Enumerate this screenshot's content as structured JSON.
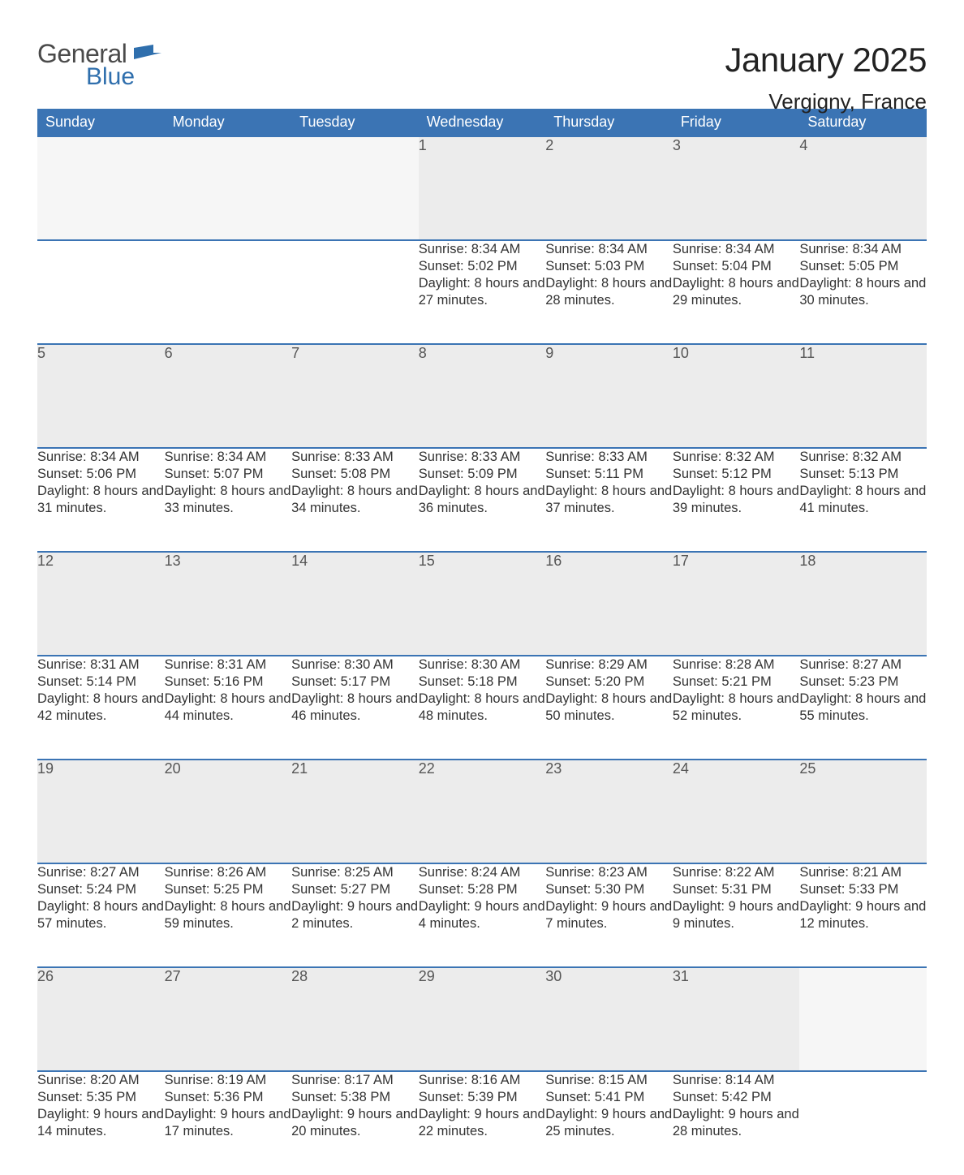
{
  "logo": {
    "word1": "General",
    "word2": "Blue"
  },
  "title": "January 2025",
  "location": "Vergigny, France",
  "colors": {
    "header_bg": "#3b74b4",
    "header_text": "#ffffff",
    "daynum_bg": "#ececec",
    "daynum_text": "#555555",
    "row_border": "#3b74b4",
    "body_text": "#333333",
    "logo_gray": "#4a4a4a",
    "logo_blue": "#2f6fad",
    "page_bg": "#ffffff"
  },
  "layout": {
    "columns": 7,
    "title_fontsize": 42,
    "location_fontsize": 26,
    "header_fontsize": 18,
    "daynum_fontsize": 18,
    "detail_fontsize": 16.5
  },
  "day_headers": [
    "Sunday",
    "Monday",
    "Tuesday",
    "Wednesday",
    "Thursday",
    "Friday",
    "Saturday"
  ],
  "weeks": [
    [
      null,
      null,
      null,
      {
        "n": "1",
        "sunrise": "8:34 AM",
        "sunset": "5:02 PM",
        "daylight": "8 hours and 27 minutes."
      },
      {
        "n": "2",
        "sunrise": "8:34 AM",
        "sunset": "5:03 PM",
        "daylight": "8 hours and 28 minutes."
      },
      {
        "n": "3",
        "sunrise": "8:34 AM",
        "sunset": "5:04 PM",
        "daylight": "8 hours and 29 minutes."
      },
      {
        "n": "4",
        "sunrise": "8:34 AM",
        "sunset": "5:05 PM",
        "daylight": "8 hours and 30 minutes."
      }
    ],
    [
      {
        "n": "5",
        "sunrise": "8:34 AM",
        "sunset": "5:06 PM",
        "daylight": "8 hours and 31 minutes."
      },
      {
        "n": "6",
        "sunrise": "8:34 AM",
        "sunset": "5:07 PM",
        "daylight": "8 hours and 33 minutes."
      },
      {
        "n": "7",
        "sunrise": "8:33 AM",
        "sunset": "5:08 PM",
        "daylight": "8 hours and 34 minutes."
      },
      {
        "n": "8",
        "sunrise": "8:33 AM",
        "sunset": "5:09 PM",
        "daylight": "8 hours and 36 minutes."
      },
      {
        "n": "9",
        "sunrise": "8:33 AM",
        "sunset": "5:11 PM",
        "daylight": "8 hours and 37 minutes."
      },
      {
        "n": "10",
        "sunrise": "8:32 AM",
        "sunset": "5:12 PM",
        "daylight": "8 hours and 39 minutes."
      },
      {
        "n": "11",
        "sunrise": "8:32 AM",
        "sunset": "5:13 PM",
        "daylight": "8 hours and 41 minutes."
      }
    ],
    [
      {
        "n": "12",
        "sunrise": "8:31 AM",
        "sunset": "5:14 PM",
        "daylight": "8 hours and 42 minutes."
      },
      {
        "n": "13",
        "sunrise": "8:31 AM",
        "sunset": "5:16 PM",
        "daylight": "8 hours and 44 minutes."
      },
      {
        "n": "14",
        "sunrise": "8:30 AM",
        "sunset": "5:17 PM",
        "daylight": "8 hours and 46 minutes."
      },
      {
        "n": "15",
        "sunrise": "8:30 AM",
        "sunset": "5:18 PM",
        "daylight": "8 hours and 48 minutes."
      },
      {
        "n": "16",
        "sunrise": "8:29 AM",
        "sunset": "5:20 PM",
        "daylight": "8 hours and 50 minutes."
      },
      {
        "n": "17",
        "sunrise": "8:28 AM",
        "sunset": "5:21 PM",
        "daylight": "8 hours and 52 minutes."
      },
      {
        "n": "18",
        "sunrise": "8:27 AM",
        "sunset": "5:23 PM",
        "daylight": "8 hours and 55 minutes."
      }
    ],
    [
      {
        "n": "19",
        "sunrise": "8:27 AM",
        "sunset": "5:24 PM",
        "daylight": "8 hours and 57 minutes."
      },
      {
        "n": "20",
        "sunrise": "8:26 AM",
        "sunset": "5:25 PM",
        "daylight": "8 hours and 59 minutes."
      },
      {
        "n": "21",
        "sunrise": "8:25 AM",
        "sunset": "5:27 PM",
        "daylight": "9 hours and 2 minutes."
      },
      {
        "n": "22",
        "sunrise": "8:24 AM",
        "sunset": "5:28 PM",
        "daylight": "9 hours and 4 minutes."
      },
      {
        "n": "23",
        "sunrise": "8:23 AM",
        "sunset": "5:30 PM",
        "daylight": "9 hours and 7 minutes."
      },
      {
        "n": "24",
        "sunrise": "8:22 AM",
        "sunset": "5:31 PM",
        "daylight": "9 hours and 9 minutes."
      },
      {
        "n": "25",
        "sunrise": "8:21 AM",
        "sunset": "5:33 PM",
        "daylight": "9 hours and 12 minutes."
      }
    ],
    [
      {
        "n": "26",
        "sunrise": "8:20 AM",
        "sunset": "5:35 PM",
        "daylight": "9 hours and 14 minutes."
      },
      {
        "n": "27",
        "sunrise": "8:19 AM",
        "sunset": "5:36 PM",
        "daylight": "9 hours and 17 minutes."
      },
      {
        "n": "28",
        "sunrise": "8:17 AM",
        "sunset": "5:38 PM",
        "daylight": "9 hours and 20 minutes."
      },
      {
        "n": "29",
        "sunrise": "8:16 AM",
        "sunset": "5:39 PM",
        "daylight": "9 hours and 22 minutes."
      },
      {
        "n": "30",
        "sunrise": "8:15 AM",
        "sunset": "5:41 PM",
        "daylight": "9 hours and 25 minutes."
      },
      {
        "n": "31",
        "sunrise": "8:14 AM",
        "sunset": "5:42 PM",
        "daylight": "9 hours and 28 minutes."
      },
      null
    ]
  ],
  "labels": {
    "sunrise": "Sunrise: ",
    "sunset": "Sunset: ",
    "daylight": "Daylight: "
  }
}
